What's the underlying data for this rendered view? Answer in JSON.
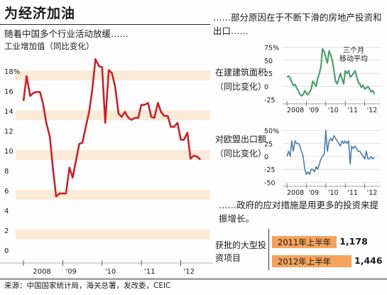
{
  "header": {
    "title": "为经济加油",
    "subtitle": "随着中国多个行业活动放缓……",
    "main_label": "工业增加值（同比变化）",
    "right_intro": "……部分原因在于不断下滑的房地产投资和出口……",
    "policy_text": "……政府的应对措施是用更多的投资来提振增长。",
    "source": "来源：中国国家统计局，海关总署，发改委，CEIC"
  },
  "colors": {
    "red_line": "#c8232c",
    "green_line": "#4ea06e",
    "blue_line": "#4a7eaa",
    "band": "#faebd9",
    "bar": "#f5a35c"
  },
  "chart_data": [
    {
      "type": "line",
      "title": "工业增加值（同比变化）",
      "x_ticks": [
        "2008",
        "'09",
        "'10",
        "'11",
        "'12"
      ],
      "y_ticks": [
        "18%",
        "16",
        "14",
        "12",
        "10",
        "8",
        "6",
        "4",
        "2",
        "0"
      ],
      "ylim": [
        0,
        19
      ],
      "grid": "alternating horizontal bands",
      "series": [
        {
          "values": [
            [
              2008.0,
              15.0
            ],
            [
              2008.08,
              17.5
            ],
            [
              2008.17,
              15.5
            ],
            [
              2008.25,
              15.8
            ],
            [
              2008.33,
              15.9
            ],
            [
              2008.42,
              15.9
            ],
            [
              2008.5,
              14.7
            ],
            [
              2008.58,
              12.8
            ],
            [
              2008.67,
              11.4
            ],
            [
              2008.75,
              8.2
            ],
            [
              2008.83,
              5.4
            ],
            [
              2008.92,
              5.7
            ],
            [
              2009.0,
              5.7
            ],
            [
              2009.08,
              5.7
            ],
            [
              2009.17,
              8.3
            ],
            [
              2009.25,
              7.3
            ],
            [
              2009.33,
              8.9
            ],
            [
              2009.42,
              10.7
            ],
            [
              2009.5,
              10.8
            ],
            [
              2009.58,
              12.3
            ],
            [
              2009.67,
              13.9
            ],
            [
              2009.75,
              16.1
            ],
            [
              2009.83,
              19.2
            ],
            [
              2009.92,
              18.5
            ],
            [
              2010.0,
              18.4
            ],
            [
              2010.08,
              12.8
            ],
            [
              2010.17,
              18.1
            ],
            [
              2010.25,
              17.8
            ],
            [
              2010.33,
              16.5
            ],
            [
              2010.42,
              13.7
            ],
            [
              2010.5,
              13.4
            ],
            [
              2010.58,
              13.9
            ],
            [
              2010.67,
              13.3
            ],
            [
              2010.75,
              13.1
            ],
            [
              2010.83,
              13.3
            ],
            [
              2010.92,
              13.3
            ],
            [
              2011.0,
              14.6
            ],
            [
              2011.08,
              14.6
            ],
            [
              2011.17,
              14.8
            ],
            [
              2011.25,
              13.4
            ],
            [
              2011.33,
              13.3
            ],
            [
              2011.42,
              14.8
            ],
            [
              2011.5,
              13.9
            ],
            [
              2011.58,
              13.5
            ],
            [
              2011.67,
              13.5
            ],
            [
              2011.75,
              12.4
            ],
            [
              2011.83,
              12.4
            ],
            [
              2011.92,
              12.8
            ],
            [
              2012.0,
              11.1
            ],
            [
              2012.08,
              11.1
            ],
            [
              2012.17,
              11.8
            ],
            [
              2012.25,
              9.2
            ],
            [
              2012.33,
              9.5
            ],
            [
              2012.42,
              9.4
            ],
            [
              2012.5,
              9.1
            ]
          ]
        }
      ]
    },
    {
      "type": "line",
      "title": "在建建筑面积（同比变化）",
      "x_ticks": [
        "2008",
        "'09",
        "'10",
        "'11",
        "'12"
      ],
      "y_ticks": [
        "75%",
        "50",
        "25",
        "0",
        "-25"
      ],
      "ylim": [
        -25,
        80
      ],
      "annotation": "三个月移动平均",
      "series": [
        {
          "values": [
            [
              2008.0,
              18
            ],
            [
              2008.08,
              20
            ],
            [
              2008.17,
              16
            ],
            [
              2008.25,
              8
            ],
            [
              2008.33,
              2
            ],
            [
              2008.42,
              4
            ],
            [
              2008.5,
              -3
            ],
            [
              2008.58,
              -8
            ],
            [
              2008.67,
              -15
            ],
            [
              2008.75,
              -18
            ],
            [
              2008.83,
              -16
            ],
            [
              2008.92,
              -8
            ],
            [
              2009.0,
              -13
            ],
            [
              2009.08,
              -16
            ],
            [
              2009.17,
              -10
            ],
            [
              2009.25,
              -5
            ],
            [
              2009.33,
              10
            ],
            [
              2009.42,
              5
            ],
            [
              2009.5,
              0
            ],
            [
              2009.58,
              15
            ],
            [
              2009.67,
              25
            ],
            [
              2009.75,
              38
            ],
            [
              2009.83,
              72
            ],
            [
              2009.92,
              66
            ],
            [
              2010.0,
              55
            ],
            [
              2010.08,
              45
            ],
            [
              2010.17,
              68
            ],
            [
              2010.25,
              60
            ],
            [
              2010.33,
              50
            ],
            [
              2010.42,
              30
            ],
            [
              2010.5,
              10
            ],
            [
              2010.58,
              5
            ],
            [
              2010.67,
              15
            ],
            [
              2010.75,
              25
            ],
            [
              2010.83,
              15
            ],
            [
              2010.92,
              5
            ],
            [
              2011.0,
              30
            ],
            [
              2011.08,
              25
            ],
            [
              2011.17,
              30
            ],
            [
              2011.25,
              18
            ],
            [
              2011.33,
              20
            ],
            [
              2011.42,
              25
            ],
            [
              2011.5,
              30
            ],
            [
              2011.58,
              20
            ],
            [
              2011.67,
              8
            ],
            [
              2011.75,
              5
            ],
            [
              2011.83,
              -2
            ],
            [
              2011.92,
              2
            ],
            [
              2012.0,
              -5
            ],
            [
              2012.08,
              -3
            ],
            [
              2012.17,
              0
            ],
            [
              2012.25,
              -5
            ],
            [
              2012.33,
              -10
            ],
            [
              2012.42,
              -8
            ],
            [
              2012.5,
              -15
            ]
          ]
        }
      ]
    },
    {
      "type": "line",
      "title": "对欧盟出口额（同比变化）",
      "x_ticks": [
        "2008",
        "'09",
        "'10",
        "'11",
        "'12"
      ],
      "y_ticks": [
        "50%",
        "25",
        "0",
        "-25",
        "-50"
      ],
      "ylim": [
        -55,
        55
      ],
      "series": [
        {
          "values": [
            [
              2008.0,
              0
            ],
            [
              2008.08,
              10
            ],
            [
              2008.17,
              0
            ],
            [
              2008.25,
              30
            ],
            [
              2008.33,
              10
            ],
            [
              2008.42,
              30
            ],
            [
              2008.5,
              25
            ],
            [
              2008.58,
              25
            ],
            [
              2008.67,
              20
            ],
            [
              2008.75,
              10
            ],
            [
              2008.83,
              0
            ],
            [
              2008.92,
              -25
            ],
            [
              2009.0,
              -35
            ],
            [
              2009.08,
              -30
            ],
            [
              2009.17,
              -35
            ],
            [
              2009.25,
              -25
            ],
            [
              2009.33,
              -25
            ],
            [
              2009.42,
              -30
            ],
            [
              2009.5,
              -20
            ],
            [
              2009.58,
              -25
            ],
            [
              2009.67,
              -15
            ],
            [
              2009.75,
              -5
            ],
            [
              2009.83,
              0
            ],
            [
              2009.92,
              5
            ],
            [
              2010.0,
              50
            ],
            [
              2010.08,
              10
            ],
            [
              2010.17,
              30
            ],
            [
              2010.25,
              35
            ],
            [
              2010.33,
              30
            ],
            [
              2010.42,
              40
            ],
            [
              2010.5,
              35
            ],
            [
              2010.58,
              30
            ],
            [
              2010.67,
              25
            ],
            [
              2010.75,
              20
            ],
            [
              2010.83,
              30
            ],
            [
              2010.92,
              25
            ],
            [
              2011.0,
              30
            ],
            [
              2011.08,
              25
            ],
            [
              2011.17,
              30
            ],
            [
              2011.25,
              -15
            ],
            [
              2011.33,
              20
            ],
            [
              2011.42,
              15
            ],
            [
              2011.5,
              20
            ],
            [
              2011.58,
              15
            ],
            [
              2011.67,
              10
            ],
            [
              2011.75,
              10
            ],
            [
              2011.83,
              5
            ],
            [
              2011.92,
              0
            ],
            [
              2012.0,
              -5
            ],
            [
              2012.08,
              10
            ],
            [
              2012.17,
              -5
            ],
            [
              2012.25,
              -5
            ],
            [
              2012.33,
              0
            ],
            [
              2012.42,
              -5
            ],
            [
              2012.5,
              -2
            ]
          ]
        }
      ]
    },
    {
      "type": "bar",
      "title": "获批的大型投资项目",
      "categories": [
        "2011年上半年",
        "2012年上半年"
      ],
      "values": [
        1178,
        1446
      ],
      "labels": [
        "1,178",
        "1,446"
      ]
    }
  ]
}
